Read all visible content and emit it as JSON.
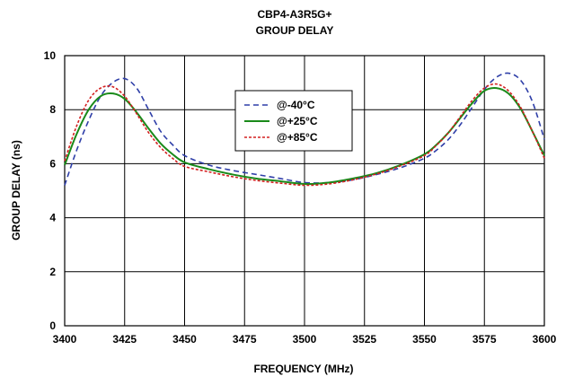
{
  "chart_data": {
    "type": "line",
    "title": "CBP4-A3R5G+",
    "subtitle": "GROUP DELAY",
    "xlabel": "FREQUENCY (MHz)",
    "ylabel": "GROUP DELAY (ns)",
    "xlim": [
      3400,
      3600
    ],
    "ylim": [
      0,
      10
    ],
    "x_ticks": [
      "3400",
      "3425",
      "3450",
      "3475",
      "3500",
      "3525",
      "3550",
      "3575",
      "3600"
    ],
    "y_ticks": [
      "0",
      "2",
      "4",
      "6",
      "8",
      "10"
    ],
    "grid": true,
    "legend_position": "upper-center",
    "x": [
      3400,
      3405,
      3410,
      3415,
      3420,
      3425,
      3430,
      3435,
      3440,
      3445,
      3450,
      3460,
      3470,
      3480,
      3490,
      3500,
      3510,
      3520,
      3530,
      3540,
      3550,
      3555,
      3560,
      3565,
      3570,
      3575,
      3580,
      3585,
      3590,
      3595,
      3600
    ],
    "series": [
      {
        "name": "@-40°C",
        "color": "#2f3fa8",
        "dash": "dashed",
        "values": [
          5.2,
          6.5,
          7.6,
          8.5,
          9.0,
          9.15,
          8.8,
          8.0,
          7.2,
          6.7,
          6.3,
          5.95,
          5.75,
          5.6,
          5.45,
          5.3,
          5.3,
          5.4,
          5.6,
          5.85,
          6.2,
          6.5,
          6.9,
          7.45,
          8.1,
          8.75,
          9.2,
          9.35,
          9.1,
          8.3,
          6.9
        ]
      },
      {
        "name": "@+25°C",
        "color": "#1a8a1a",
        "dash": "solid",
        "values": [
          5.95,
          7.1,
          8.0,
          8.5,
          8.6,
          8.4,
          7.9,
          7.3,
          6.75,
          6.35,
          6.05,
          5.8,
          5.6,
          5.45,
          5.35,
          5.25,
          5.3,
          5.45,
          5.65,
          5.95,
          6.35,
          6.7,
          7.15,
          7.7,
          8.25,
          8.7,
          8.8,
          8.6,
          8.05,
          7.2,
          6.3
        ]
      },
      {
        "name": "@+85°C",
        "color": "#d32020",
        "dash": "dotted",
        "values": [
          6.1,
          7.4,
          8.35,
          8.8,
          8.85,
          8.5,
          7.85,
          7.15,
          6.6,
          6.2,
          5.9,
          5.7,
          5.52,
          5.38,
          5.28,
          5.2,
          5.25,
          5.4,
          5.62,
          5.92,
          6.3,
          6.68,
          7.15,
          7.75,
          8.35,
          8.8,
          8.95,
          8.7,
          8.1,
          7.2,
          6.2
        ]
      }
    ]
  }
}
